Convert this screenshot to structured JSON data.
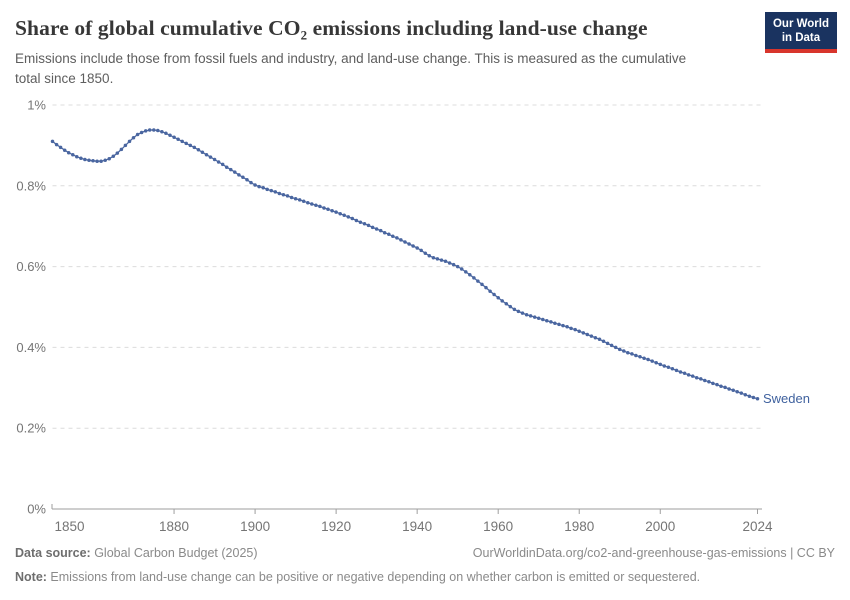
{
  "header": {
    "title": "Share of global cumulative CO₂ emissions including land-use change",
    "subtitle": "Emissions include those from fossil fuels and industry, and land-use change. This is measured as the cumulative total since 1850.",
    "logo": {
      "line1": "Our World",
      "line2": "in Data",
      "bg_color": "#1a3360",
      "stripe_color": "#d8352c"
    }
  },
  "chart_data": {
    "type": "line",
    "title": "Share of global cumulative CO₂ emissions including land-use change",
    "unit": "%",
    "grid": "horizontal-dashed",
    "legend_position": "end-of-line-label",
    "ylim": [
      0,
      1
    ],
    "yticks": [
      {
        "v": 0,
        "label": "0%"
      },
      {
        "v": 0.2,
        "label": "0.2%"
      },
      {
        "v": 0.4,
        "label": "0.4%"
      },
      {
        "v": 0.6,
        "label": "0.6%"
      },
      {
        "v": 0.8,
        "label": "0.8%"
      },
      {
        "v": 1,
        "label": "1%"
      }
    ],
    "xticks": [
      1850,
      1880,
      1900,
      1920,
      1940,
      1960,
      1980,
      2000,
      2024
    ],
    "years": {
      "start": 1850,
      "end": 2024,
      "step": 1
    },
    "colors": {
      "series": "#4A66A0",
      "entity_label": "#3F619E",
      "gridline": "#dcdcdc",
      "axis": "#9e9e9e",
      "tick_label": "#757575"
    },
    "series": [
      {
        "name": "Sweden",
        "color": "#4A66A0",
        "values": [
          0.91,
          0.902,
          0.895,
          0.888,
          0.882,
          0.877,
          0.872,
          0.868,
          0.865,
          0.863,
          0.862,
          0.861,
          0.861,
          0.863,
          0.867,
          0.873,
          0.881,
          0.89,
          0.9,
          0.91,
          0.919,
          0.927,
          0.932,
          0.936,
          0.938,
          0.938,
          0.937,
          0.934,
          0.93,
          0.925,
          0.92,
          0.915,
          0.91,
          0.905,
          0.9,
          0.895,
          0.889,
          0.883,
          0.877,
          0.871,
          0.865,
          0.859,
          0.853,
          0.846,
          0.84,
          0.834,
          0.827,
          0.821,
          0.815,
          0.808,
          0.802,
          0.798,
          0.795,
          0.791,
          0.788,
          0.785,
          0.781,
          0.778,
          0.775,
          0.771,
          0.768,
          0.765,
          0.762,
          0.758,
          0.755,
          0.752,
          0.749,
          0.745,
          0.742,
          0.738,
          0.735,
          0.731,
          0.727,
          0.723,
          0.719,
          0.714,
          0.71,
          0.706,
          0.702,
          0.697,
          0.693,
          0.689,
          0.684,
          0.68,
          0.675,
          0.671,
          0.666,
          0.661,
          0.656,
          0.651,
          0.646,
          0.64,
          0.633,
          0.627,
          0.622,
          0.619,
          0.616,
          0.613,
          0.609,
          0.605,
          0.6,
          0.594,
          0.587,
          0.58,
          0.572,
          0.564,
          0.556,
          0.548,
          0.539,
          0.531,
          0.523,
          0.515,
          0.508,
          0.501,
          0.494,
          0.489,
          0.485,
          0.481,
          0.478,
          0.475,
          0.472,
          0.469,
          0.466,
          0.463,
          0.46,
          0.457,
          0.454,
          0.451,
          0.447,
          0.444,
          0.44,
          0.436,
          0.432,
          0.428,
          0.424,
          0.42,
          0.415,
          0.41,
          0.405,
          0.4,
          0.395,
          0.391,
          0.387,
          0.384,
          0.38,
          0.377,
          0.373,
          0.37,
          0.366,
          0.362,
          0.358,
          0.354,
          0.351,
          0.347,
          0.343,
          0.339,
          0.336,
          0.332,
          0.329,
          0.325,
          0.322,
          0.318,
          0.315,
          0.311,
          0.308,
          0.304,
          0.301,
          0.297,
          0.294,
          0.29,
          0.287,
          0.283,
          0.279,
          0.276,
          0.273
        ]
      }
    ]
  },
  "footer": {
    "datasource_label": "Data source:",
    "datasource_value": " Global Carbon Budget (2025)",
    "credit": "OurWorldinData.org/co2-and-greenhouse-gas-emissions | CC BY",
    "note_label": "Note:",
    "note_value": " Emissions from land-use change can be positive or negative depending on whether carbon is emitted or sequestered."
  }
}
